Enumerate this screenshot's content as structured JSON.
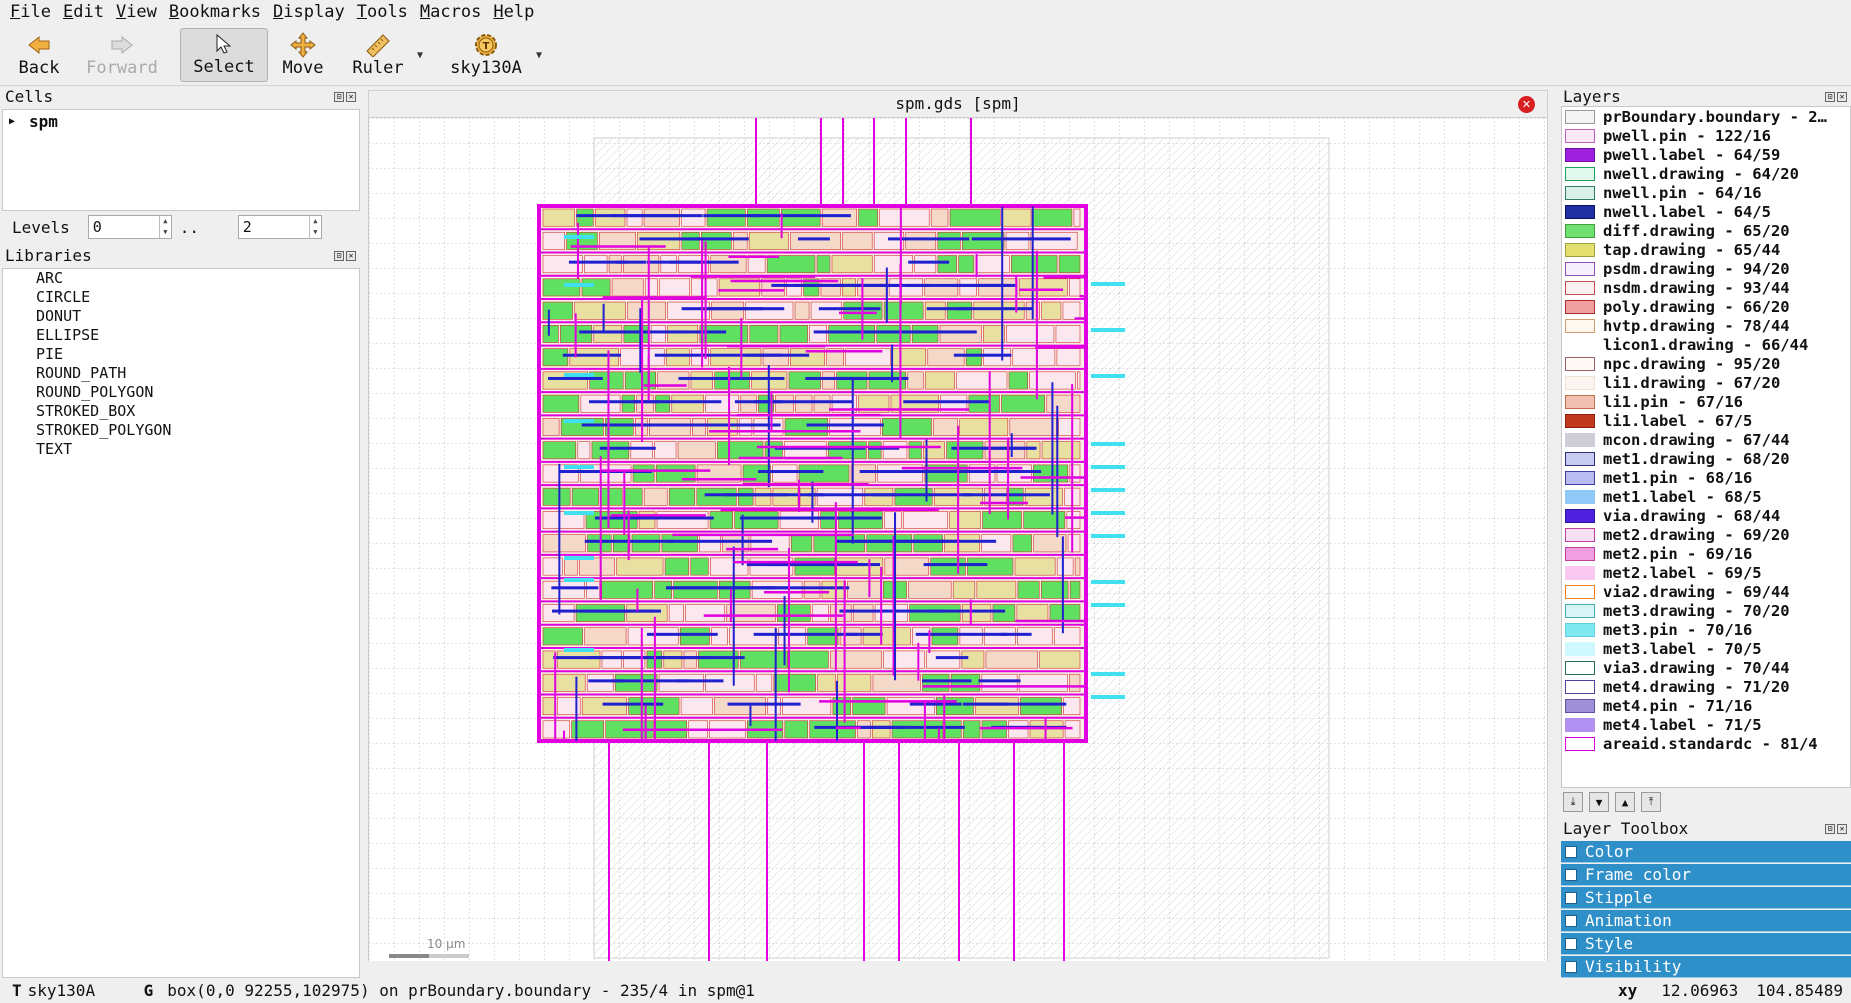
{
  "menu": [
    "File",
    "Edit",
    "View",
    "Bookmarks",
    "Display",
    "Tools",
    "Macros",
    "Help"
  ],
  "toolbar": {
    "back": "Back",
    "forward": "Forward",
    "select": "Select",
    "move": "Move",
    "ruler": "Ruler",
    "tech": "sky130A"
  },
  "cells": {
    "title": "Cells",
    "items": [
      "spm"
    ]
  },
  "levels": {
    "label": "Levels",
    "from": "0",
    "sep": "..",
    "to": "2"
  },
  "libraries": {
    "title": "Libraries",
    "items": [
      "ARC",
      "CIRCLE",
      "DONUT",
      "ELLIPSE",
      "PIE",
      "ROUND_PATH",
      "ROUND_POLYGON",
      "STROKED_BOX",
      "STROKED_POLYGON",
      "TEXT"
    ]
  },
  "canvas": {
    "title": "spm.gds [spm]",
    "scale_label": "10 µm"
  },
  "layers": {
    "title": "Layers",
    "items": [
      {
        "name": "prBoundary.boundary - 2…",
        "fill": "#f4f4f4",
        "border": "#999"
      },
      {
        "name": "pwell.pin - 122/16",
        "fill": "#fde8f5",
        "border": "#c060c0"
      },
      {
        "name": "pwell.label - 64/59",
        "fill": "#a020e0",
        "border": "#7010a0"
      },
      {
        "name": "nwell.drawing - 64/20",
        "fill": "#e0f8ee",
        "border": "#20a060"
      },
      {
        "name": "nwell.pin - 64/16",
        "fill": "#d8f0e8",
        "border": "#308060"
      },
      {
        "name": "nwell.label - 64/5",
        "fill": "#2030a0",
        "border": "#101060"
      },
      {
        "name": "diff.drawing - 65/20",
        "fill": "#70e070",
        "border": "#40a040"
      },
      {
        "name": "tap.drawing - 65/44",
        "fill": "#e4e070",
        "border": "#a0a040"
      },
      {
        "name": "psdm.drawing - 94/20",
        "fill": "#f6f0fc",
        "border": "#9050c0"
      },
      {
        "name": "nsdm.drawing - 93/44",
        "fill": "#fcf0f0",
        "border": "#c05050"
      },
      {
        "name": "poly.drawing - 66/20",
        "fill": "#f0a0a0",
        "border": "#b03030"
      },
      {
        "name": "hvtp.drawing - 78/44",
        "fill": "#fff8f0",
        "border": "#d0a070"
      },
      {
        "name": "licon1.drawing - 66/44",
        "fill": "#ffffff",
        "border": "#ffffff"
      },
      {
        "name": "npc.drawing - 95/20",
        "fill": "#fff8f8",
        "border": "#a06060"
      },
      {
        "name": "li1.drawing - 67/20",
        "fill": "#fcf4ee",
        "border": "#f0e0d0"
      },
      {
        "name": "li1.pin - 67/16",
        "fill": "#f0c0b0",
        "border": "#c07050"
      },
      {
        "name": "li1.label - 67/5",
        "fill": "#c03a20",
        "border": "#901a10"
      },
      {
        "name": "mcon.drawing - 67/44",
        "fill": "#d0ccd8",
        "border": "#d0ccd8"
      },
      {
        "name": "met1.drawing - 68/20",
        "fill": "#c8ccf0",
        "border": "#303080"
      },
      {
        "name": "met1.pin - 68/16",
        "fill": "#b8bcf0",
        "border": "#4040a0"
      },
      {
        "name": "met1.label - 68/5",
        "fill": "#90c8f8",
        "border": "#90c8f8"
      },
      {
        "name": "via.drawing - 68/44",
        "fill": "#5020e0",
        "border": "#3010a0"
      },
      {
        "name": "met2.drawing - 69/20",
        "fill": "#f8e0f4",
        "border": "#c040a0"
      },
      {
        "name": "met2.pin - 69/16",
        "fill": "#f0a0e0",
        "border": "#c040a0"
      },
      {
        "name": "met2.label - 69/5",
        "fill": "#f8c8f0",
        "border": "#f8c8f0"
      },
      {
        "name": "via2.drawing - 69/44",
        "fill": "#ffffff",
        "border": "#f08020"
      },
      {
        "name": "met3.drawing - 70/20",
        "fill": "#d8f4f4",
        "border": "#40b0b0"
      },
      {
        "name": "met3.pin - 70/16",
        "fill": "#80e8f0",
        "border": "#60d0e0"
      },
      {
        "name": "met3.label - 70/5",
        "fill": "#d0f8ff",
        "border": "#d0f8ff"
      },
      {
        "name": "via3.drawing - 70/44",
        "fill": "#ffffff",
        "border": "#207050"
      },
      {
        "name": "met4.drawing - 71/20",
        "fill": "#ffffff",
        "border": "#5040a0"
      },
      {
        "name": "met4.pin - 71/16",
        "fill": "#a090d8",
        "border": "#6050a0"
      },
      {
        "name": "met4.label - 71/5",
        "fill": "#b090f0",
        "border": "#b090f0"
      },
      {
        "name": "areaid.standardc - 81/4",
        "fill": "#ffffff",
        "border": "#e000e0"
      }
    ]
  },
  "layer_toolbox": {
    "title": "Layer Toolbox",
    "items": [
      "Color",
      "Frame color",
      "Stipple",
      "Animation",
      "Style",
      "Visibility"
    ]
  },
  "status": {
    "tech_prefix": "T",
    "tech": "sky130A",
    "g_prefix": "G",
    "message": "box(0,0 92255,102975) on prBoundary.boundary - 235/4 in spm@1",
    "xy_label": "xy",
    "x": "12.06963",
    "y": "104.85489"
  },
  "colors": {
    "layout_magenta": "#e000e0",
    "layout_blue": "#2020d0",
    "layout_green": "#60e060",
    "layout_red": "#d03030",
    "pin_cyan": "#40e0f0",
    "accent_blue": "#2f8fc9"
  }
}
